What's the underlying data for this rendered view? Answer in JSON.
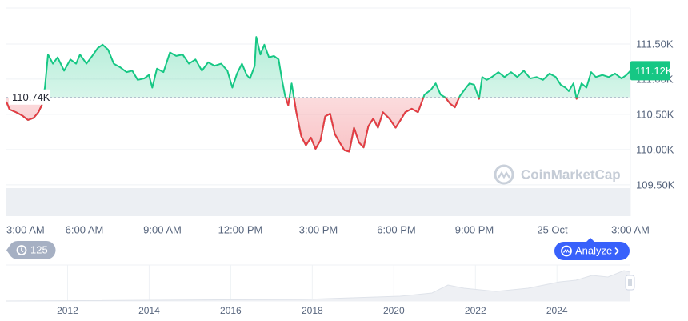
{
  "chart_data": {
    "type": "line",
    "x": [
      0,
      0.12,
      0.37,
      0.62,
      0.83,
      1.05,
      1.23,
      1.36,
      1.48,
      1.6,
      1.79,
      1.97,
      2.22,
      2.46,
      2.68,
      2.83,
      3.08,
      3.3,
      3.51,
      3.7,
      3.91,
      4.13,
      4.37,
      4.62,
      4.84,
      5.05,
      5.3,
      5.48,
      5.61,
      5.79,
      6.04,
      6.29,
      6.53,
      6.78,
      7.02,
      7.27,
      7.52,
      7.76,
      8.01,
      8.26,
      8.5,
      8.69,
      8.87,
      9.06,
      9.24,
      9.37,
      9.55,
      9.61,
      9.77,
      9.92,
      10.1,
      10.29,
      10.47,
      10.6,
      10.72,
      10.84,
      10.97,
      11.15,
      11.34,
      11.52,
      11.71,
      11.89,
      12.08,
      12.26,
      12.45,
      12.63,
      12.82,
      13,
      13.19,
      13.37,
      13.56,
      13.74,
      13.92,
      14.11,
      14.29,
      14.48,
      14.73,
      14.97,
      15.16,
      15.34,
      15.59,
      15.83,
      16.08,
      16.33,
      16.51,
      16.7,
      16.88,
      17.07,
      17.25,
      17.44,
      17.62,
      17.81,
      17.99,
      18.18,
      18.3,
      18.48,
      18.67,
      18.92,
      19.16,
      19.41,
      19.65,
      19.9,
      20.15,
      20.39,
      20.64,
      20.89,
      21.13,
      21.32,
      21.5,
      21.63,
      21.81,
      21.93,
      22.12,
      22.31,
      22.49,
      22.67,
      22.92,
      23.17,
      23.41,
      23.66,
      23.85,
      24
    ],
    "values": [
      110680,
      110570,
      110530,
      110480,
      110420,
      110450,
      110530,
      110630,
      110880,
      111350,
      111220,
      111310,
      111120,
      111280,
      111220,
      111350,
      111220,
      111330,
      111440,
      111490,
      111420,
      111220,
      111170,
      111100,
      111120,
      110990,
      111010,
      111060,
      110880,
      111150,
      111100,
      111380,
      111330,
      111350,
      111220,
      111280,
      111120,
      111240,
      111190,
      111220,
      111120,
      110880,
      111080,
      111220,
      111060,
      111010,
      111190,
      111600,
      111350,
      111490,
      111310,
      111330,
      111280,
      110990,
      110760,
      110630,
      110940,
      110530,
      110190,
      110060,
      110170,
      110010,
      110130,
      110470,
      110510,
      110220,
      110100,
      109990,
      109970,
      110310,
      110100,
      110030,
      110330,
      110440,
      110310,
      110530,
      110440,
      110310,
      110420,
      110530,
      110580,
      110530,
      110780,
      110850,
      110940,
      110780,
      110740,
      110650,
      110600,
      110760,
      110850,
      110940,
      110920,
      110720,
      111030,
      110990,
      111030,
      111100,
      111030,
      111100,
      111030,
      111120,
      111010,
      111030,
      110990,
      111080,
      111030,
      110920,
      110880,
      110830,
      110940,
      110720,
      110940,
      110880,
      111100,
      111030,
      111060,
      111030,
      111080,
      111010,
      111060,
      111120
    ],
    "up_color": "#16c784",
    "down_color": "#ea3943",
    "baseline": {
      "value": 110740,
      "label": "110.74K"
    },
    "price_label": {
      "value": 111120,
      "label": "111.12K"
    },
    "xlim": [
      0,
      24
    ],
    "xticks": [
      {
        "value": 0,
        "label": "3:00 AM"
      },
      {
        "value": 3,
        "label": "6:00 AM"
      },
      {
        "value": 6,
        "label": "9:00 AM"
      },
      {
        "value": 9,
        "label": "12:00 PM"
      },
      {
        "value": 12,
        "label": "3:00 PM"
      },
      {
        "value": 15,
        "label": "6:00 PM"
      },
      {
        "value": 18,
        "label": "9:00 PM"
      },
      {
        "value": 21,
        "label": "25 Oct"
      },
      {
        "value": 24,
        "label": "3:00 AM"
      }
    ],
    "ylim": [
      109100,
      112000
    ],
    "yticks": [
      {
        "value": 109500,
        "label": "109.50K"
      },
      {
        "value": 110000,
        "label": "110.00K"
      },
      {
        "value": 110500,
        "label": "110.50K"
      },
      {
        "value": 111000,
        "label": "111.00K"
      },
      {
        "value": 111500,
        "label": "111.50K"
      }
    ],
    "grid": true,
    "navigator": {
      "xlim": [
        2010.5,
        2025.8
      ],
      "xticks": [
        2012,
        2014,
        2016,
        2018,
        2020,
        2022,
        2024
      ]
    }
  },
  "watermark": "CoinMarketCap",
  "badge": "125",
  "button": "Analyze"
}
